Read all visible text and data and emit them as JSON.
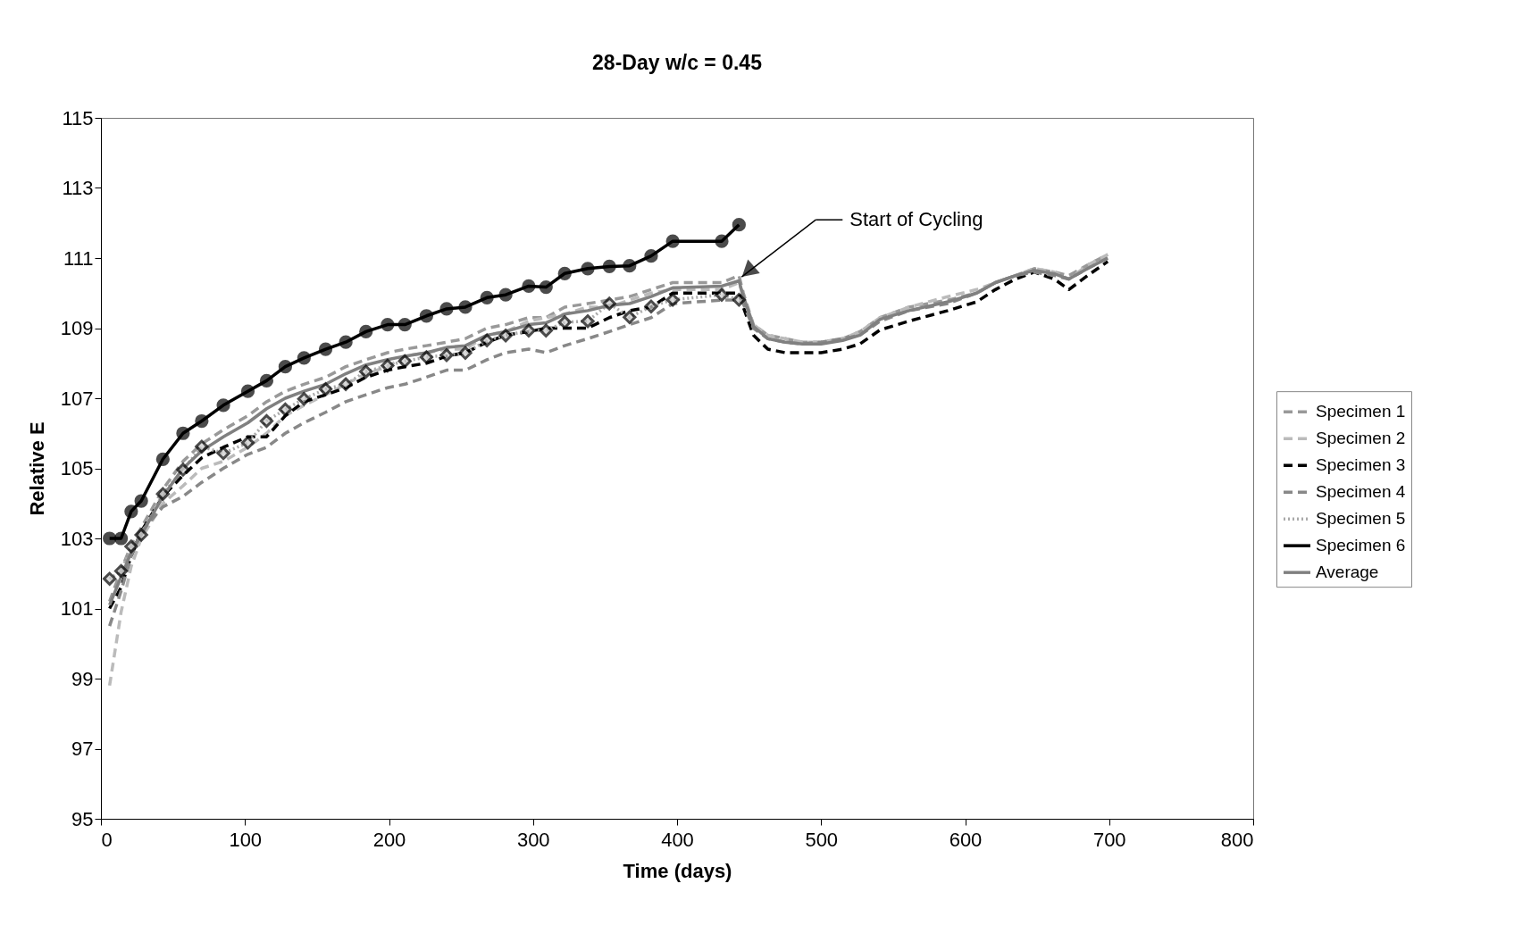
{
  "chart_data": {
    "type": "line",
    "title": "28-Day  w/c = 0.45",
    "xlabel": "Time (days)",
    "ylabel": "Relative E",
    "xlim": [
      0,
      800
    ],
    "xticks": [
      0,
      100,
      200,
      300,
      400,
      500,
      600,
      700,
      800
    ],
    "ylim": [
      95,
      115
    ],
    "yticks": [
      95,
      97,
      99,
      101,
      103,
      105,
      107,
      109,
      111,
      113,
      115
    ],
    "grid": false,
    "legend": "right",
    "annotations": [
      "Start of Cycling"
    ],
    "series": [
      {
        "name": "Specimen 1",
        "color": "#999999",
        "line_style": "dashed",
        "marker": "none",
        "x": [
          6,
          14,
          21,
          28,
          43,
          57,
          70,
          85,
          102,
          115,
          128,
          141,
          156,
          170,
          184,
          199,
          211,
          226,
          240,
          253,
          268,
          281,
          297,
          309,
          322,
          338,
          353,
          367,
          382,
          397,
          431,
          443,
          446,
          453,
          463,
          475,
          487,
          500,
          515,
          527,
          541,
          561,
          588,
          608,
          621,
          635,
          648,
          662,
          672,
          685,
          699
        ],
        "values": [
          101.2,
          102.1,
          102.8,
          103.3,
          104.4,
          105.2,
          105.7,
          106.1,
          106.5,
          106.9,
          107.2,
          107.4,
          107.6,
          107.9,
          108.1,
          108.3,
          108.4,
          108.5,
          108.6,
          108.7,
          109.0,
          109.1,
          109.3,
          109.3,
          109.6,
          109.7,
          109.8,
          109.9,
          110.1,
          110.3,
          110.3,
          110.5,
          110.0,
          109.1,
          108.8,
          108.7,
          108.6,
          108.6,
          108.7,
          108.9,
          109.3,
          109.6,
          109.8,
          110.0,
          110.3,
          110.5,
          110.7,
          110.6,
          110.5,
          110.8,
          111.1
        ]
      },
      {
        "name": "Specimen 2",
        "color": "#bbbbbb",
        "line_style": "dashed",
        "marker": "none",
        "x": [
          6,
          14,
          21,
          28,
          43,
          57,
          70,
          85,
          102,
          115,
          128,
          141,
          156,
          170,
          184,
          199,
          211,
          226,
          240,
          253,
          268,
          281,
          297,
          309,
          322,
          338,
          353,
          367,
          382,
          397,
          431,
          443,
          446,
          453,
          463,
          475,
          487,
          500,
          515,
          527,
          541,
          561,
          588,
          608,
          621,
          635,
          648,
          662,
          672,
          685,
          699
        ],
        "values": [
          98.8,
          100.9,
          102.2,
          103.0,
          104.0,
          104.5,
          105.0,
          105.2,
          105.6,
          106.0,
          106.5,
          106.8,
          107.1,
          107.4,
          107.7,
          107.9,
          108.2,
          108.3,
          108.4,
          108.4,
          108.8,
          108.9,
          109.2,
          109.3,
          109.4,
          109.6,
          109.6,
          109.8,
          110.0,
          110.1,
          110.1,
          110.3,
          109.9,
          109.1,
          108.8,
          108.7,
          108.6,
          108.6,
          108.7,
          108.9,
          109.3,
          109.6,
          109.9,
          110.1,
          110.3,
          110.5,
          110.7,
          110.6,
          110.4,
          110.8,
          111.1
        ]
      },
      {
        "name": "Specimen 3",
        "color": "#000000",
        "line_style": "dashed",
        "marker": "none",
        "x": [
          6,
          14,
          21,
          28,
          43,
          57,
          70,
          85,
          102,
          115,
          128,
          141,
          156,
          170,
          184,
          199,
          211,
          226,
          240,
          253,
          268,
          281,
          297,
          309,
          322,
          338,
          353,
          367,
          382,
          397,
          431,
          443,
          446,
          453,
          463,
          475,
          487,
          500,
          515,
          527,
          541,
          561,
          588,
          608,
          621,
          635,
          648,
          662,
          672,
          685,
          699
        ],
        "values": [
          101.0,
          101.6,
          102.5,
          103.2,
          104.2,
          104.8,
          105.3,
          105.6,
          105.9,
          105.9,
          106.5,
          106.9,
          107.1,
          107.3,
          107.6,
          107.8,
          107.9,
          108.0,
          108.2,
          108.3,
          108.6,
          108.8,
          108.9,
          109.0,
          109.0,
          109.0,
          109.3,
          109.5,
          109.6,
          110.0,
          110.0,
          110.0,
          109.6,
          108.8,
          108.4,
          108.3,
          108.3,
          108.3,
          108.4,
          108.55,
          108.95,
          109.2,
          109.5,
          109.75,
          110.1,
          110.4,
          110.6,
          110.4,
          110.1,
          110.5,
          110.9
        ]
      },
      {
        "name": "Specimen 4",
        "color": "#888888",
        "line_style": "dashed",
        "marker": "none",
        "x": [
          6,
          14,
          21,
          28,
          43,
          57,
          70,
          85,
          102,
          115,
          128,
          141,
          156,
          170,
          184,
          199,
          211,
          226,
          240,
          253,
          268,
          281,
          297,
          309,
          322,
          338,
          353,
          367,
          382,
          397,
          431,
          443,
          446,
          453,
          463,
          475,
          487,
          500,
          515,
          527,
          541,
          561,
          588,
          608,
          621,
          635,
          648,
          662,
          672,
          685,
          699
        ],
        "values": [
          100.5,
          101.5,
          102.5,
          103.2,
          103.9,
          104.2,
          104.6,
          105.0,
          105.4,
          105.6,
          106.0,
          106.3,
          106.6,
          106.9,
          107.1,
          107.3,
          107.4,
          107.6,
          107.8,
          107.8,
          108.1,
          108.3,
          108.4,
          108.3,
          108.5,
          108.7,
          108.9,
          109.1,
          109.3,
          109.7,
          109.8,
          109.8,
          109.7,
          109.0,
          108.7,
          108.6,
          108.55,
          108.6,
          108.7,
          108.8,
          109.2,
          109.5,
          109.7,
          110.0,
          110.3,
          110.5,
          110.6,
          110.5,
          110.4,
          110.7,
          111.0
        ]
      },
      {
        "name": "Specimen 5",
        "color": "#aaaaaa",
        "line_style": "dotted",
        "marker": "diamond",
        "x": [
          6,
          14,
          21,
          28,
          43,
          57,
          70,
          85,
          102,
          115,
          128,
          141,
          156,
          170,
          184,
          199,
          211,
          226,
          240,
          253,
          268,
          281,
          297,
          309,
          322,
          338,
          353,
          367,
          382,
          397,
          431,
          443
        ],
        "values": [
          101.85,
          102.07,
          102.77,
          103.1,
          104.27,
          104.96,
          105.62,
          105.43,
          105.73,
          106.35,
          106.68,
          106.98,
          107.26,
          107.4,
          107.76,
          107.93,
          108.06,
          108.17,
          108.23,
          108.29,
          108.65,
          108.79,
          108.93,
          108.93,
          109.17,
          109.2,
          109.7,
          109.31,
          109.62,
          109.81,
          109.95,
          109.81
        ]
      },
      {
        "name": "Specimen 6",
        "color": "#000000",
        "line_style": "solid",
        "marker": "circle",
        "x": [
          6,
          14,
          21,
          28,
          43,
          57,
          70,
          85,
          102,
          115,
          128,
          141,
          156,
          170,
          184,
          199,
          211,
          226,
          240,
          253,
          268,
          281,
          297,
          309,
          322,
          338,
          353,
          367,
          382,
          397,
          431,
          443
        ],
        "values": [
          103.0,
          103.0,
          103.77,
          104.07,
          105.26,
          106.0,
          106.35,
          106.8,
          107.2,
          107.5,
          107.9,
          108.15,
          108.4,
          108.6,
          108.9,
          109.1,
          109.1,
          109.35,
          109.55,
          109.6,
          109.87,
          109.95,
          110.2,
          110.17,
          110.56,
          110.7,
          110.76,
          110.78,
          111.06,
          111.48,
          111.48,
          111.95
        ]
      },
      {
        "name": "Average",
        "color": "#808080",
        "line_style": "solid",
        "marker": "none",
        "x": [
          6,
          14,
          21,
          28,
          43,
          57,
          70,
          85,
          102,
          115,
          128,
          141,
          156,
          170,
          184,
          199,
          211,
          226,
          240,
          253,
          268,
          281,
          297,
          309,
          322,
          338,
          353,
          367,
          382,
          397,
          431,
          443,
          446,
          453,
          463,
          475,
          487,
          500,
          515,
          527,
          541,
          561,
          588,
          608,
          621,
          635,
          648,
          662,
          672,
          685,
          699
        ],
        "values": [
          101.1,
          101.9,
          102.6,
          103.1,
          104.2,
          105.0,
          105.5,
          105.9,
          106.3,
          106.7,
          107.0,
          107.2,
          107.4,
          107.7,
          107.95,
          108.1,
          108.2,
          108.3,
          108.45,
          108.5,
          108.8,
          108.9,
          109.1,
          109.15,
          109.4,
          109.5,
          109.65,
          109.7,
          109.9,
          110.15,
          110.2,
          110.35,
          109.9,
          109.05,
          108.7,
          108.6,
          108.55,
          108.55,
          108.65,
          108.8,
          109.25,
          109.5,
          109.75,
          110.0,
          110.3,
          110.5,
          110.65,
          110.55,
          110.4,
          110.7,
          111.0
        ]
      }
    ]
  }
}
